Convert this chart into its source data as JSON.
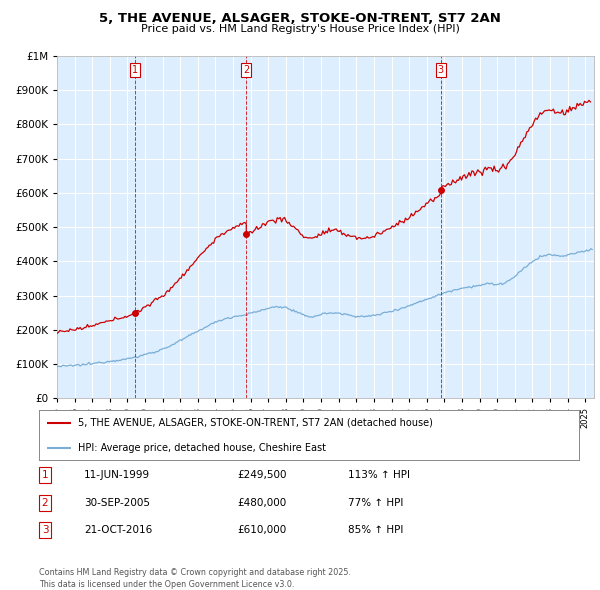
{
  "title": "5, THE AVENUE, ALSAGER, STOKE-ON-TRENT, ST7 2AN",
  "subtitle": "Price paid vs. HM Land Registry's House Price Index (HPI)",
  "legend_line1": "5, THE AVENUE, ALSAGER, STOKE-ON-TRENT, ST7 2AN (detached house)",
  "legend_line2": "HPI: Average price, detached house, Cheshire East",
  "footer": "Contains HM Land Registry data © Crown copyright and database right 2025.\nThis data is licensed under the Open Government Licence v3.0.",
  "purchases": [
    {
      "num": 1,
      "date": "11-JUN-1999",
      "price": 249500,
      "pct": "113% ↑ HPI",
      "x_year": 1999.44
    },
    {
      "num": 2,
      "date": "30-SEP-2005",
      "price": 480000,
      "pct": "77% ↑ HPI",
      "x_year": 2005.75
    },
    {
      "num": 3,
      "date": "21-OCT-2016",
      "price": 610000,
      "pct": "85% ↑ HPI",
      "x_year": 2016.8
    }
  ],
  "hpi_color": "#7aaed6",
  "price_color": "#cc0000",
  "vline_color": "#cc0000",
  "chart_bg": "#ddeeff",
  "ylim": [
    0,
    1000000
  ],
  "xlim_start": 1995,
  "xlim_end": 2025.5,
  "background_color": "#ffffff",
  "grid_color": "#ffffff"
}
